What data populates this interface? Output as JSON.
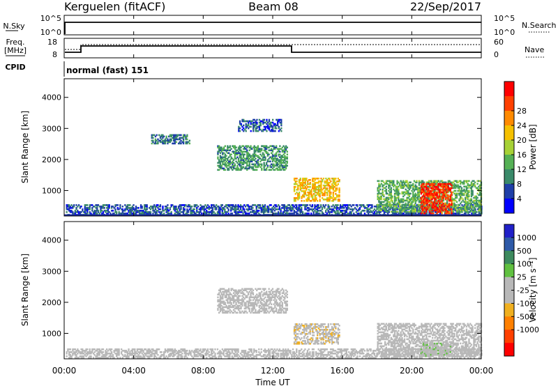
{
  "header": {
    "station": "Kerguelen (fitACF)",
    "beam": "Beam 08",
    "date": "22/Sep/2017"
  },
  "noise_panel": {
    "left_label": "N.Sky",
    "right_label": "N.Search",
    "left_ticks": [
      "10^5",
      "10^0"
    ],
    "right_ticks": [
      "10^5",
      "10^0"
    ]
  },
  "freq_panel": {
    "left_label_1": "Freq.",
    "left_label_2": "[MHz]",
    "right_label": "Nave",
    "left_ticks": [
      "18",
      "8"
    ],
    "right_ticks": [
      "60",
      "0"
    ]
  },
  "cpid_panel": {
    "left_label": "CPID",
    "text": "normal (fast) 151"
  },
  "time_axis": {
    "label": "Time UT",
    "ticks": [
      "00:00",
      "04:00",
      "08:00",
      "12:00",
      "16:00",
      "20:00",
      "00:00"
    ]
  },
  "colors": {
    "power": [
      "#0000ff",
      "#1f3fa8",
      "#3a8a6a",
      "#55b055",
      "#a6d136",
      "#f5c000",
      "#ff8a00",
      "#ff4000",
      "#ff0000"
    ],
    "velocity": [
      "#2020c8",
      "#2e5aa8",
      "#3d8a5e",
      "#60c040",
      "#b8b8b8",
      "#b8b8b8",
      "#f0b020",
      "#ff8000",
      "#ff4000",
      "#ff0000"
    ]
  },
  "chart_data": [
    {
      "type": "heatmap",
      "name": "power",
      "ylabel": "Slant Range [km]",
      "xlim": [
        0,
        24
      ],
      "ylim": [
        180,
        4600
      ],
      "yticks": [
        "1000",
        "2000",
        "3000",
        "4000"
      ],
      "colorbar_label": "Power [dB]",
      "colorbar_ticks": [
        "4",
        "8",
        "12",
        "16",
        "20",
        "24",
        "28"
      ],
      "clim": [
        0,
        32
      ],
      "regions": [
        {
          "t": [
            0.1,
            24.0
          ],
          "r": [
            200,
            520
          ],
          "v": 6
        },
        {
          "t": [
            8.8,
            12.8
          ],
          "r": [
            1650,
            2450
          ],
          "v": 10
        },
        {
          "t": [
            13.2,
            15.8
          ],
          "r": [
            650,
            1400
          ],
          "v": 20
        },
        {
          "t": [
            18.0,
            24.0
          ],
          "r": [
            300,
            1300
          ],
          "v": 12
        },
        {
          "t": [
            20.5,
            22.3
          ],
          "r": [
            250,
            1200
          ],
          "v": 28
        },
        {
          "t": [
            10.0,
            12.5
          ],
          "r": [
            2900,
            3300
          ],
          "v": 6
        },
        {
          "t": [
            5.0,
            7.2
          ],
          "r": [
            2500,
            2800
          ],
          "v": 8
        }
      ]
    },
    {
      "type": "heatmap",
      "name": "velocity",
      "ylabel": "Slant Range [km]",
      "xlim": [
        0,
        24
      ],
      "ylim": [
        180,
        4600
      ],
      "yticks": [
        "1000",
        "2000",
        "3000",
        "4000"
      ],
      "colorbar_label": "Velocity [m s⁻¹]",
      "colorbar_ticks": [
        "1000",
        "500",
        "100",
        "25",
        "-25",
        "-100",
        "-500",
        "-1000"
      ],
      "clim": [
        -1200,
        1200
      ],
      "regions": [
        {
          "t": [
            0.1,
            24.0
          ],
          "r": [
            200,
            500
          ],
          "v": 40
        },
        {
          "t": [
            8.8,
            12.8
          ],
          "r": [
            1650,
            2450
          ],
          "v": 0
        },
        {
          "t": [
            13.2,
            15.8
          ],
          "r": [
            650,
            1300
          ],
          "v": -150
        },
        {
          "t": [
            18.0,
            24.0
          ],
          "r": [
            300,
            1300
          ],
          "v": 0
        },
        {
          "t": [
            20.5,
            22.3
          ],
          "r": [
            250,
            700
          ],
          "v": 150
        }
      ]
    }
  ]
}
